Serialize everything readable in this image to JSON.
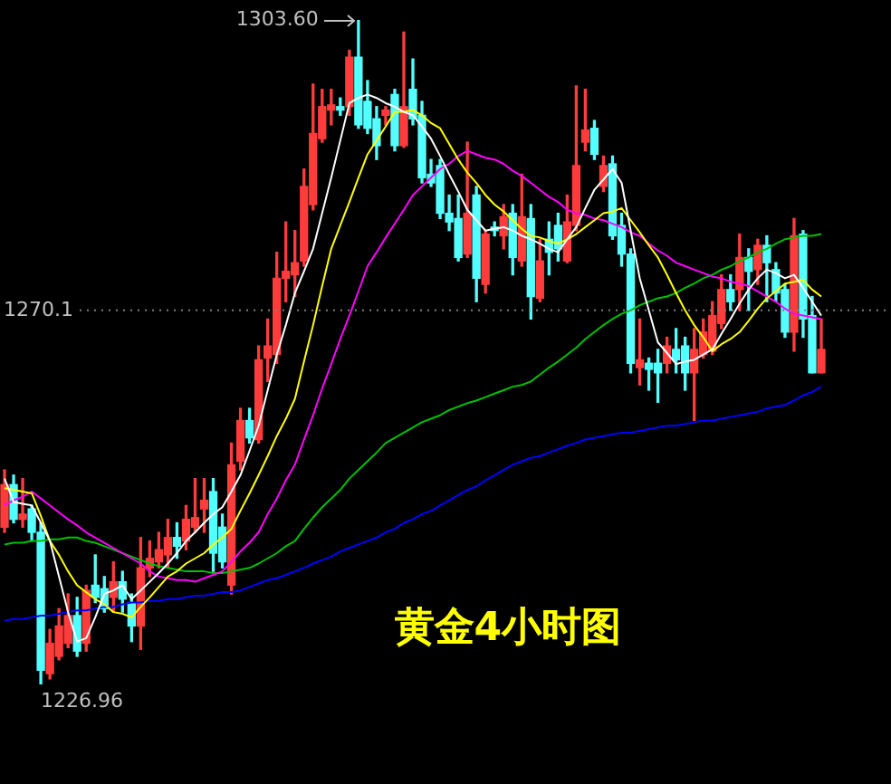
{
  "chart_data": {
    "type": "candlestick",
    "title": "黄金4小时图",
    "tick_labels": false,
    "legend": false,
    "marker": "none",
    "line_style": "solid",
    "categories": [
      null,
      null,
      null,
      null,
      null,
      null,
      null,
      null,
      null,
      null,
      null,
      null,
      null,
      null,
      null,
      null,
      null,
      null,
      null,
      null,
      null,
      null,
      null,
      null,
      null,
      null,
      null,
      null,
      null,
      null,
      null,
      null,
      null,
      null,
      null,
      null,
      null,
      null,
      null,
      null,
      null,
      null,
      null,
      null,
      null,
      null,
      null,
      null,
      null,
      null,
      null,
      null,
      null,
      null,
      null,
      null,
      null,
      null,
      null,
      null,
      null,
      null,
      null,
      null,
      null,
      null,
      null,
      null,
      null,
      null,
      null,
      null,
      null,
      null,
      null,
      null,
      null,
      null,
      null,
      null,
      null,
      null,
      null,
      null,
      null,
      null,
      null,
      null,
      null,
      null,
      null
    ],
    "ohlc": [
      [
        1245.1,
        1251.7,
        1244.5,
        1250.0
      ],
      [
        1250.0,
        1251.1,
        1245.6,
        1246.0
      ],
      [
        1246.0,
        1250.7,
        1245.1,
        1246.6
      ],
      [
        1247.2,
        1247.6,
        1243.5,
        1244.5
      ],
      [
        1244.5,
        1245.6,
        1226.96,
        1228.6
      ],
      [
        1228.2,
        1233.3,
        1227.6,
        1231.7
      ],
      [
        1230.2,
        1235.7,
        1229.8,
        1233.7
      ],
      [
        1231.7,
        1237.4,
        1231.2,
        1234.9
      ],
      [
        1234.9,
        1237.0,
        1230.2,
        1230.8
      ],
      [
        1231.7,
        1238.4,
        1230.8,
        1237.8
      ],
      [
        1238.4,
        1241.9,
        1236.4,
        1237.0
      ],
      [
        1238.0,
        1239.4,
        1235.3,
        1235.7
      ],
      [
        1237.0,
        1241.1,
        1235.3,
        1238.8
      ],
      [
        1238.8,
        1240.0,
        1235.3,
        1236.8
      ],
      [
        1236.4,
        1237.4,
        1231.9,
        1233.7
      ],
      [
        1233.7,
        1243.9,
        1231.0,
        1240.4
      ],
      [
        1240.4,
        1243.5,
        1239.4,
        1241.5
      ],
      [
        1241.1,
        1244.5,
        1240.4,
        1242.5
      ],
      [
        1241.9,
        1246.0,
        1240.4,
        1243.9
      ],
      [
        1243.9,
        1245.6,
        1241.5,
        1242.9
      ],
      [
        1243.5,
        1247.6,
        1242.5,
        1246.0
      ],
      [
        1245.1,
        1250.7,
        1244.5,
        1246.2
      ],
      [
        1247.2,
        1250.7,
        1244.5,
        1248.2
      ],
      [
        1249.2,
        1250.7,
        1240.0,
        1242.1
      ],
      [
        1245.1,
        1246.6,
        1240.4,
        1241.1
      ],
      [
        1238.4,
        1254.8,
        1237.4,
        1252.3
      ],
      [
        1252.7,
        1258.8,
        1251.7,
        1257.4
      ],
      [
        1257.4,
        1258.8,
        1254.8,
        1255.4
      ],
      [
        1255.2,
        1266.0,
        1254.8,
        1264.4
      ],
      [
        1264.6,
        1269.1,
        1261.9,
        1266.0
      ],
      [
        1265.0,
        1276.8,
        1264.0,
        1273.8
      ],
      [
        1273.8,
        1280.3,
        1271.1,
        1274.6
      ],
      [
        1274.2,
        1279.3,
        1271.7,
        1275.6
      ],
      [
        1275.8,
        1286.4,
        1275.2,
        1284.4
      ],
      [
        1282.3,
        1296.2,
        1281.7,
        1290.5
      ],
      [
        1289.9,
        1295.6,
        1289.5,
        1293.6
      ],
      [
        1293.2,
        1295.6,
        1291.5,
        1293.8
      ],
      [
        1293.6,
        1294.6,
        1292.6,
        1293.2
      ],
      [
        1293.6,
        1300.1,
        1292.6,
        1299.3
      ],
      [
        1299.3,
        1303.6,
        1291.1,
        1291.5
      ],
      [
        1294.2,
        1296.6,
        1290.5,
        1291.1
      ],
      [
        1292.2,
        1293.6,
        1287.5,
        1289.1
      ],
      [
        1292.6,
        1293.6,
        1291.5,
        1293.2
      ],
      [
        1295.0,
        1295.6,
        1288.5,
        1289.1
      ],
      [
        1289.1,
        1302.2,
        1288.9,
        1293.6
      ],
      [
        1295.6,
        1299.1,
        1291.5,
        1292.2
      ],
      [
        1292.6,
        1294.2,
        1284.8,
        1285.4
      ],
      [
        1285.8,
        1287.5,
        1284.4,
        1284.8
      ],
      [
        1286.8,
        1287.5,
        1280.7,
        1281.3
      ],
      [
        1281.3,
        1283.4,
        1279.3,
        1280.3
      ],
      [
        1280.7,
        1283.4,
        1275.8,
        1276.2
      ],
      [
        1276.6,
        1289.5,
        1276.2,
        1281.3
      ],
      [
        1283.4,
        1284.4,
        1271.1,
        1273.8
      ],
      [
        1273.1,
        1279.3,
        1272.1,
        1278.9
      ],
      [
        1279.7,
        1280.3,
        1278.7,
        1279.3
      ],
      [
        1278.7,
        1282.3,
        1277.2,
        1280.9
      ],
      [
        1281.3,
        1282.3,
        1274.2,
        1276.2
      ],
      [
        1275.8,
        1285.8,
        1275.2,
        1280.9
      ],
      [
        1280.7,
        1282.3,
        1269.1,
        1271.7
      ],
      [
        1271.5,
        1278.3,
        1271.1,
        1275.8
      ],
      [
        1278.3,
        1280.3,
        1274.2,
        1276.8
      ],
      [
        1279.9,
        1281.3,
        1275.8,
        1277.2
      ],
      [
        1275.8,
        1283.4,
        1275.6,
        1280.3
      ],
      [
        1279.9,
        1296.0,
        1279.3,
        1286.8
      ],
      [
        1289.5,
        1295.6,
        1288.5,
        1290.9
      ],
      [
        1291.1,
        1292.0,
        1287.5,
        1288.1
      ],
      [
        1284.4,
        1287.9,
        1283.8,
        1286.8
      ],
      [
        1287.0,
        1287.9,
        1278.3,
        1278.7
      ],
      [
        1279.9,
        1281.3,
        1275.2,
        1276.6
      ],
      [
        1276.6,
        1277.2,
        1262.9,
        1264.0
      ],
      [
        1263.5,
        1269.1,
        1261.5,
        1264.4
      ],
      [
        1264.0,
        1264.6,
        1260.9,
        1263.3
      ],
      [
        1264.0,
        1265.6,
        1259.5,
        1262.9
      ],
      [
        1264.0,
        1267.0,
        1262.9,
        1266.0
      ],
      [
        1265.6,
        1268.0,
        1262.9,
        1264.4
      ],
      [
        1266.0,
        1267.0,
        1260.9,
        1262.9
      ],
      [
        1262.9,
        1268.0,
        1257.4,
        1265.6
      ],
      [
        1265.0,
        1269.1,
        1264.6,
        1267.6
      ],
      [
        1265.4,
        1271.1,
        1265.0,
        1269.5
      ],
      [
        1268.6,
        1274.2,
        1268.0,
        1272.5
      ],
      [
        1272.5,
        1274.2,
        1270.1,
        1271.1
      ],
      [
        1272.5,
        1278.9,
        1270.1,
        1276.2
      ],
      [
        1276.2,
        1277.2,
        1270.1,
        1274.6
      ],
      [
        1274.8,
        1278.3,
        1273.1,
        1277.6
      ],
      [
        1277.6,
        1278.7,
        1271.1,
        1275.6
      ],
      [
        1274.8,
        1275.6,
        1271.1,
        1272.1
      ],
      [
        1272.5,
        1273.1,
        1267.0,
        1267.6
      ],
      [
        1267.6,
        1280.7,
        1265.4,
        1278.7
      ],
      [
        1278.9,
        1279.3,
        1267.0,
        1269.1
      ],
      [
        1269.5,
        1271.7,
        1262.9,
        1262.9
      ],
      [
        1262.9,
        1269.1,
        1262.9,
        1265.6
      ]
    ],
    "series": [
      {
        "type": "line",
        "color": "#ffffff",
        "values": [
          1250.7,
          1248.0,
          1247.8,
          1247.6,
          1245.6,
          1243.5,
          1239.4,
          1235.3,
          1231.9,
          1232.3,
          1234.7,
          1237.4,
          1237.8,
          1238.4,
          1236.8,
          1237.8,
          1238.8,
          1239.8,
          1240.9,
          1242.1,
          1243.5,
          1244.5,
          1245.6,
          1246.6,
          1247.4,
          1249.2,
          1251.1,
          1253.9,
          1256.8,
          1260.9,
          1265.0,
          1268.4,
          1272.1,
          1274.6,
          1277.2,
          1281.3,
          1285.4,
          1289.7,
          1294.0,
          1294.6,
          1295.0,
          1294.6,
          1294.0,
          1293.6,
          1293.0,
          1292.6,
          1291.3,
          1289.9,
          1287.9,
          1285.8,
          1283.8,
          1281.7,
          1280.5,
          1279.3,
          1279.5,
          1279.7,
          1279.3,
          1278.7,
          1278.3,
          1277.8,
          1277.2,
          1276.8,
          1278.3,
          1279.7,
          1281.9,
          1284.0,
          1285.2,
          1286.4,
          1284.8,
          1279.3,
          1273.8,
          1270.1,
          1266.4,
          1265.2,
          1263.9,
          1264.2,
          1264.4,
          1265.0,
          1265.6,
          1267.4,
          1269.1,
          1270.9,
          1272.5,
          1273.8,
          1274.8,
          1274.4,
          1273.8,
          1274.2,
          1272.7,
          1271.1,
          1269.5
        ]
      },
      {
        "type": "line",
        "color": "#ffff00",
        "values": [
          1249.6,
          1249.4,
          1249.2,
          1249.0,
          1246.4,
          1243.5,
          1241.9,
          1240.0,
          1238.4,
          1237.6,
          1236.8,
          1236.2,
          1235.3,
          1235.1,
          1234.7,
          1235.9,
          1237.0,
          1238.2,
          1239.4,
          1240.0,
          1240.9,
          1241.5,
          1242.1,
          1243.1,
          1243.9,
          1244.9,
          1247.0,
          1249.0,
          1251.1,
          1253.3,
          1255.6,
          1257.6,
          1259.9,
          1264.2,
          1268.4,
          1272.9,
          1277.2,
          1279.9,
          1282.6,
          1285.4,
          1288.1,
          1289.7,
          1291.3,
          1293.0,
          1293.0,
          1293.2,
          1292.6,
          1291.7,
          1291.1,
          1289.3,
          1287.5,
          1286.0,
          1284.8,
          1283.4,
          1282.3,
          1281.5,
          1280.5,
          1279.5,
          1278.7,
          1278.5,
          1278.1,
          1277.8,
          1278.3,
          1278.9,
          1279.7,
          1280.5,
          1281.3,
          1281.5,
          1281.9,
          1280.5,
          1279.1,
          1277.6,
          1276.2,
          1274.2,
          1272.1,
          1270.1,
          1268.4,
          1267.0,
          1265.4,
          1266.2,
          1266.8,
          1267.6,
          1268.9,
          1270.3,
          1271.5,
          1272.3,
          1273.2,
          1273.4,
          1273.6,
          1272.5,
          1271.7
        ]
      },
      {
        "type": "line",
        "color": "#ff00ff",
        "values": [
          1247.6,
          1248.2,
          1248.6,
          1249.2,
          1248.4,
          1247.6,
          1246.8,
          1246.0,
          1245.3,
          1244.5,
          1243.9,
          1243.3,
          1242.7,
          1242.1,
          1241.5,
          1240.9,
          1240.0,
          1239.4,
          1239.2,
          1239.0,
          1239.0,
          1238.8,
          1239.2,
          1239.6,
          1240.0,
          1241.1,
          1242.3,
          1243.3,
          1244.5,
          1246.6,
          1248.4,
          1250.5,
          1252.3,
          1255.2,
          1258.0,
          1261.1,
          1263.9,
          1266.8,
          1269.5,
          1272.3,
          1275.2,
          1276.8,
          1278.5,
          1280.1,
          1281.7,
          1283.4,
          1284.4,
          1285.4,
          1286.4,
          1287.0,
          1287.9,
          1288.5,
          1288.1,
          1287.7,
          1287.5,
          1287.0,
          1286.2,
          1285.6,
          1284.8,
          1284.0,
          1283.2,
          1282.6,
          1281.7,
          1281.3,
          1281.1,
          1280.7,
          1280.5,
          1280.1,
          1279.7,
          1279.1,
          1278.7,
          1277.8,
          1277.0,
          1276.4,
          1275.6,
          1275.2,
          1274.8,
          1274.4,
          1274.0,
          1273.8,
          1273.4,
          1273.2,
          1272.9,
          1272.3,
          1271.7,
          1271.1,
          1270.3,
          1269.7,
          1269.5,
          1269.3,
          1269.1
        ]
      },
      {
        "type": "line",
        "color": "#00c000",
        "values": [
          1243.1,
          1243.3,
          1243.3,
          1243.5,
          1243.5,
          1243.7,
          1243.7,
          1243.9,
          1243.9,
          1243.5,
          1243.3,
          1242.9,
          1242.5,
          1242.1,
          1241.7,
          1241.3,
          1240.9,
          1240.6,
          1240.4,
          1240.2,
          1240.0,
          1240.0,
          1240.0,
          1239.8,
          1239.8,
          1240.0,
          1240.2,
          1240.4,
          1240.9,
          1241.5,
          1242.1,
          1242.9,
          1243.5,
          1244.9,
          1246.2,
          1247.4,
          1248.4,
          1249.4,
          1250.7,
          1251.7,
          1252.7,
          1253.7,
          1254.8,
          1255.4,
          1256.0,
          1256.6,
          1257.2,
          1257.6,
          1258.0,
          1258.6,
          1259.0,
          1259.4,
          1259.7,
          1260.1,
          1260.5,
          1260.9,
          1261.3,
          1261.5,
          1261.9,
          1262.7,
          1263.5,
          1264.2,
          1265.0,
          1265.8,
          1266.8,
          1267.6,
          1268.4,
          1269.1,
          1269.7,
          1270.1,
          1270.7,
          1271.1,
          1271.5,
          1271.7,
          1272.1,
          1272.7,
          1273.2,
          1273.8,
          1274.2,
          1274.8,
          1275.2,
          1275.8,
          1276.2,
          1276.8,
          1277.2,
          1277.8,
          1278.3,
          1278.5,
          1278.7,
          1278.7,
          1278.9
        ]
      },
      {
        "type": "line",
        "color": "#0000ff",
        "values": [
          1234.3,
          1234.5,
          1234.5,
          1234.7,
          1234.9,
          1234.9,
          1235.1,
          1235.3,
          1235.5,
          1235.5,
          1235.7,
          1235.9,
          1235.9,
          1236.2,
          1236.4,
          1236.4,
          1236.6,
          1236.6,
          1236.8,
          1236.8,
          1237.0,
          1237.2,
          1237.2,
          1237.4,
          1237.6,
          1237.6,
          1237.8,
          1238.2,
          1238.6,
          1239.0,
          1239.2,
          1239.6,
          1240.0,
          1240.4,
          1240.9,
          1241.3,
          1241.7,
          1242.3,
          1242.7,
          1243.1,
          1243.5,
          1243.9,
          1244.5,
          1244.9,
          1245.6,
          1246.0,
          1246.6,
          1247.0,
          1247.6,
          1248.2,
          1248.8,
          1249.4,
          1249.8,
          1250.5,
          1251.1,
          1251.7,
          1252.3,
          1252.7,
          1253.1,
          1253.3,
          1253.7,
          1254.1,
          1254.5,
          1254.8,
          1255.2,
          1255.4,
          1255.6,
          1255.8,
          1256.0,
          1256.0,
          1256.2,
          1256.4,
          1256.6,
          1256.8,
          1256.8,
          1257.0,
          1257.2,
          1257.4,
          1257.4,
          1257.6,
          1257.8,
          1258.0,
          1258.2,
          1258.4,
          1258.8,
          1259.0,
          1259.2,
          1259.7,
          1260.3,
          1260.7,
          1261.3
        ]
      }
    ],
    "ref_lines": [
      {
        "axis": "y",
        "value": 1270.1,
        "label": "1270.1",
        "color": "#808080",
        "line_style": "dotted"
      }
    ],
    "annotations": [
      "1303.60",
      "1226.96"
    ]
  }
}
